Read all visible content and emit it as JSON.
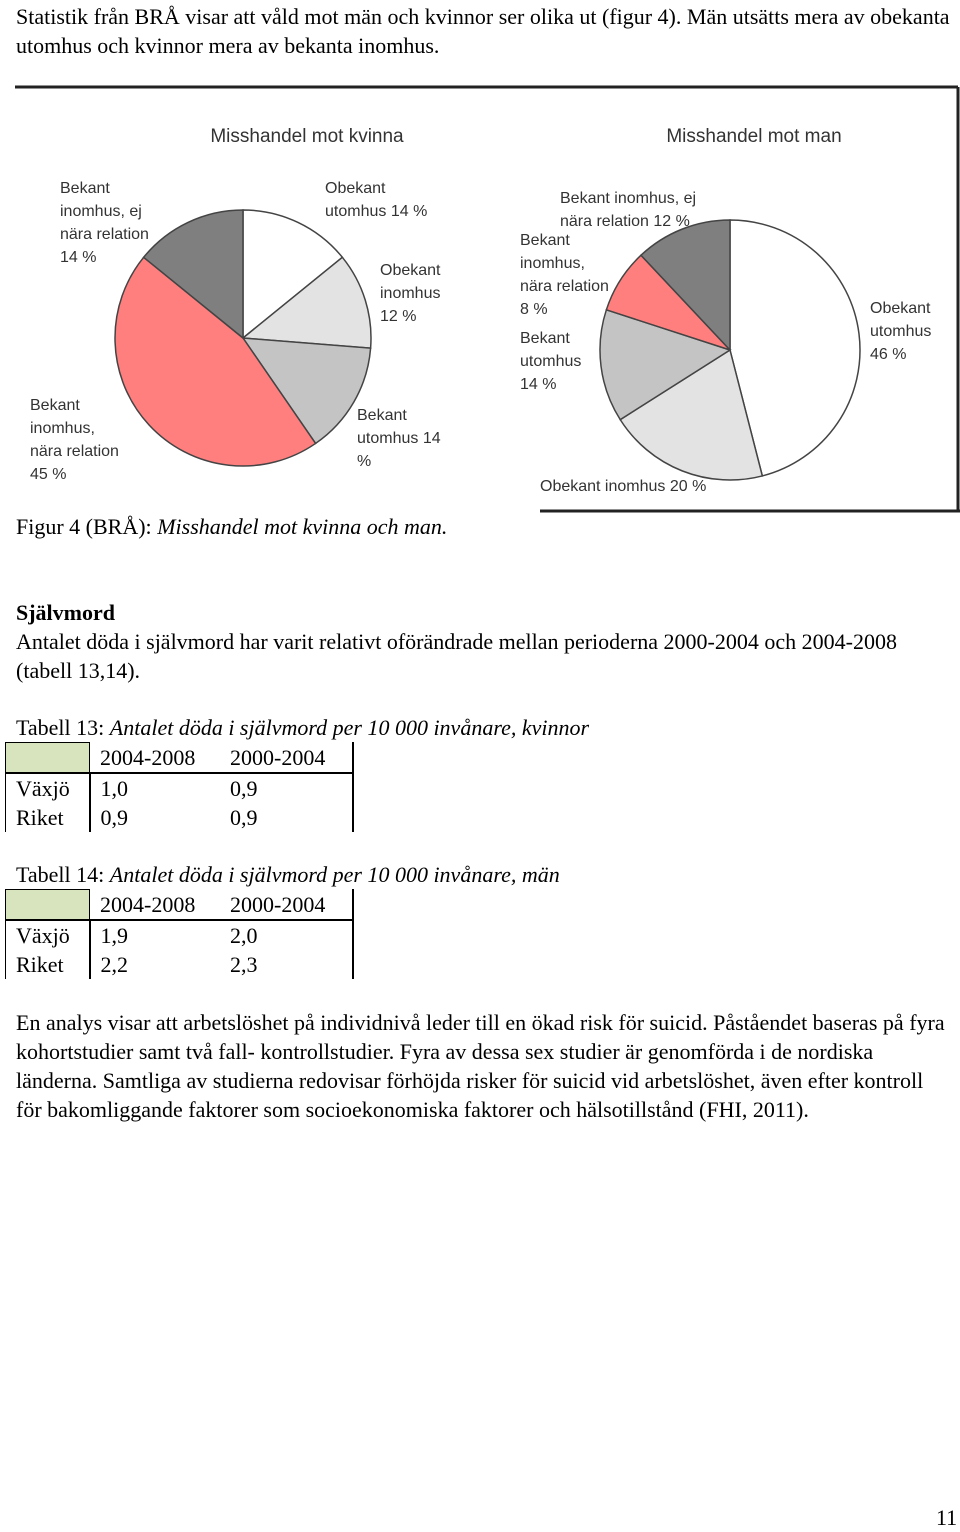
{
  "intro": "Statistik från BRÅ visar att våld mot män och kvinnor ser olika ut (figur 4). Män utsätts mera av obekanta utomhus och kvinnor mera av bekanta inomhus.",
  "chart_data": [
    {
      "type": "pie",
      "title": "Misshandel mot kvinna",
      "categories": [
        "Obekant utomhus",
        "Obekant inomhus",
        "Bekant utomhus",
        "Bekant inomhus, nära relation",
        "Bekant inomhus, ej nära relation"
      ],
      "values": [
        14,
        12,
        14,
        45,
        14
      ],
      "value_labels": [
        "14 %",
        "12 %",
        "14 %",
        "45 %",
        "14 %"
      ],
      "colors": [
        "#ffffff",
        "#e3e3e3",
        "#c4c4c4",
        "#ff7f7f",
        "#7f7f7f"
      ]
    },
    {
      "type": "pie",
      "title": "Misshandel mot man",
      "categories": [
        "Obekant utomhus",
        "Obekant inomhus",
        "Bekant utomhus",
        "Bekant inomhus, nära relation",
        "Bekant inomhus, ej nära relation"
      ],
      "values": [
        46,
        20,
        14,
        8,
        12
      ],
      "value_labels": [
        "46 %",
        "20 %",
        "14 %",
        "8 %",
        "12 %"
      ],
      "colors": [
        "#ffffff",
        "#e3e3e3",
        "#c4c4c4",
        "#ff7f7f",
        "#7f7f7f"
      ]
    }
  ],
  "figure_caption": {
    "label": "Figur 4 (BRÅ):",
    "text": "Misshandel mot kvinna och man."
  },
  "section": {
    "heading": "Självmord",
    "paragraph": "Antalet döda i självmord har varit relativt oförändrade mellan perioderna 2000-2004 och 2004-2008 (tabell 13,14)."
  },
  "tables": [
    {
      "label": "Tabell 13:",
      "caption": "Antalet döda i självmord per 10 000 invånare, kvinnor",
      "columns": [
        "2004-2008",
        "2000-2004"
      ],
      "rows": [
        {
          "label": "Växjö",
          "values": [
            "1,0",
            "0,9"
          ]
        },
        {
          "label": "Riket",
          "values": [
            "0,9",
            "0,9"
          ]
        }
      ]
    },
    {
      "label": "Tabell 14:",
      "caption": "Antalet döda i självmord per 10 000 invånare, män",
      "columns": [
        "2004-2008",
        "2000-2004"
      ],
      "rows": [
        {
          "label": "Växjö",
          "values": [
            "1,9",
            "2,0"
          ]
        },
        {
          "label": "Riket",
          "values": [
            "2,2",
            "2,3"
          ]
        }
      ]
    }
  ],
  "closing_paragraph": "En analys visar att arbetslöshet på individnivå leder till en ökad risk för suicid. Påståendet baseras på fyra kohortstudier samt två fall- kontrollstudier. Fyra av dessa sex studier är genomförda i de nordiska länderna. Samtliga av studierna redovisar förhöjda risker för suicid vid arbetslöshet, även efter kontroll för bakomliggande faktorer som socioekonomiska faktorer och hälsotillstånd (FHI, 2011).",
  "page_number": "11"
}
